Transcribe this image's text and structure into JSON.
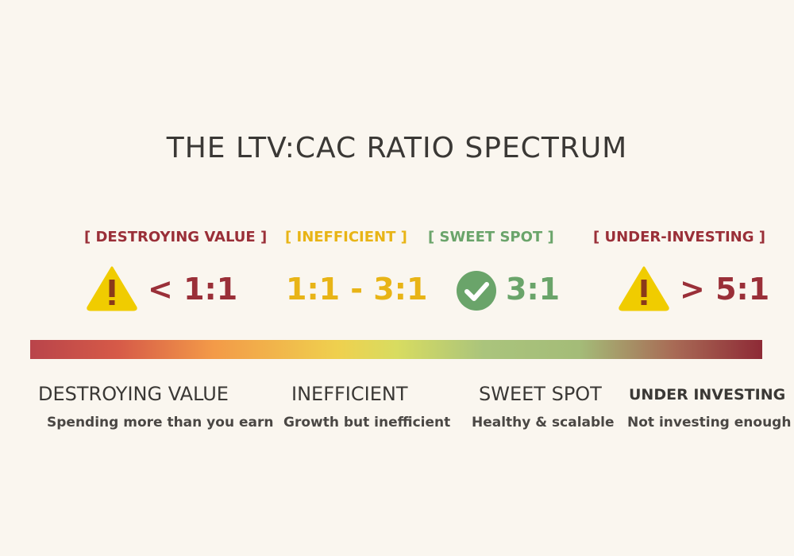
{
  "title": "THE LTV:CAC RATIO SPECTRUM",
  "colors": {
    "red": "#9a2f38",
    "yellow": "#e8b416",
    "green": "#6aa46a",
    "warning": "#f0cc00",
    "background": "#faf6ef"
  },
  "segments": [
    {
      "tag": "[ DESTROYING VALUE ]",
      "icon": "warning-triangle-icon",
      "ratio": "< 1:1",
      "label": "DESTROYING VALUE",
      "description": "Spending more than you earn"
    },
    {
      "tag": "[ INEFFICIENT ]",
      "icon": "",
      "ratio": "1:1 - 3:1",
      "label": "INEFFICIENT",
      "description": "Growth but inefficient"
    },
    {
      "tag": "[ SWEET SPOT ]",
      "icon": "check-circle-icon",
      "ratio": "3:1",
      "label": "SWEET SPOT",
      "description": "Healthy & scalable"
    },
    {
      "tag": "[ UNDER-INVESTING ]",
      "icon": "warning-triangle-icon",
      "ratio": "> 5:1",
      "label": "UNDER INVESTING",
      "description": "Not investing enough"
    }
  ]
}
